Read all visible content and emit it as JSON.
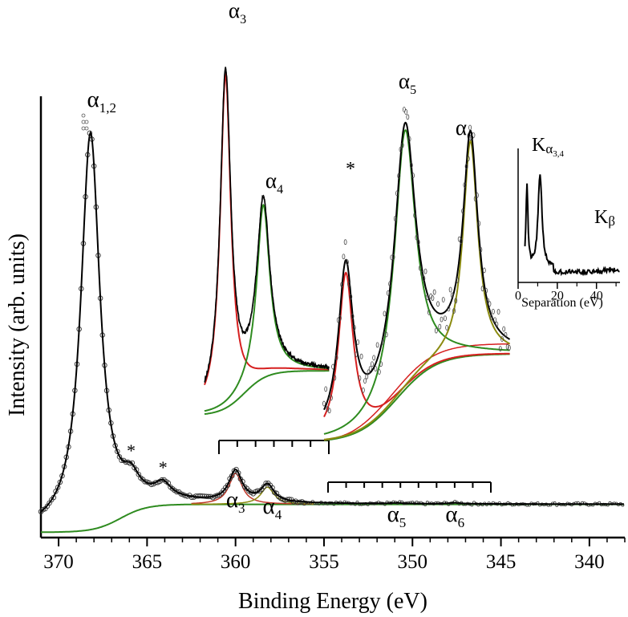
{
  "chart_data": [
    {
      "type": "line",
      "panel": "main",
      "xlabel": "Binding Energy (eV)",
      "ylabel": "Intensity (arb. units)",
      "xlim": [
        371,
        338
      ],
      "ylim": [
        0,
        1
      ],
      "x_ticks": [
        370,
        365,
        360,
        355,
        350,
        345,
        340
      ],
      "x_tick_labels": [
        "370",
        "365",
        "360",
        "355",
        "350",
        "345",
        "340"
      ],
      "colors": {
        "fit": "#000000",
        "background": "#2e8b1f",
        "component": "#8b8b10",
        "data": "#333333"
      },
      "peaks": [
        {
          "label": "α",
          "sub": "1,2",
          "energy": 368.2,
          "height": 0.92
        },
        {
          "label": "α",
          "sub": "3",
          "energy": 360.0,
          "height": 0.072
        },
        {
          "label": "α",
          "sub": "4",
          "energy": 358.2,
          "height": 0.04
        },
        {
          "label": "α",
          "sub": "5",
          "energy": 350.9,
          "height": 0.0015
        },
        {
          "label": "α",
          "sub": "6",
          "energy": 347.6,
          "height": 0.0025
        }
      ],
      "satellites": [
        {
          "label": "*",
          "energy": 365.9,
          "height": 0.045
        },
        {
          "label": "*",
          "energy": 364.1,
          "height": 0.032
        }
      ],
      "background": {
        "plateau": 0.065,
        "step_energy": 366.5
      }
    },
    {
      "type": "line",
      "panel": "inset-a3-a4",
      "xlim": [
        361,
        355
      ],
      "x_ticks": [
        361,
        360,
        359,
        358,
        357,
        356,
        355
      ],
      "peaks": [
        {
          "label": "α",
          "sub": "3",
          "energy": 360.0,
          "height": 1.0
        },
        {
          "label": "α",
          "sub": "4",
          "energy": 358.2,
          "height": 0.52
        }
      ]
    },
    {
      "type": "line",
      "panel": "inset-a5-a6",
      "xlim": [
        355,
        346
      ],
      "x_ticks": [
        355,
        354,
        353,
        352,
        351,
        350,
        349,
        348,
        347,
        346
      ],
      "peaks": [
        {
          "label": "*",
          "sub": "",
          "energy": 353.9,
          "height": 0.6
        },
        {
          "label": "α",
          "sub": "5",
          "energy": 350.9,
          "height": 1.0
        },
        {
          "label": "α",
          "sub": "6",
          "energy": 347.6,
          "height": 0.86
        }
      ]
    },
    {
      "type": "line",
      "panel": "inset-kalpha",
      "xlabel": "Separation (eV)",
      "xlim": [
        0,
        52
      ],
      "x_ticks": [
        0,
        20,
        40
      ],
      "x_tick_labels": [
        "0",
        "20",
        "40"
      ],
      "labels": [
        {
          "main": "K",
          "sub": "α",
          "subsub": "3,4",
          "separation": 11
        },
        {
          "main": "K",
          "sub": "β",
          "subsub": "",
          "separation": 48
        }
      ]
    }
  ]
}
